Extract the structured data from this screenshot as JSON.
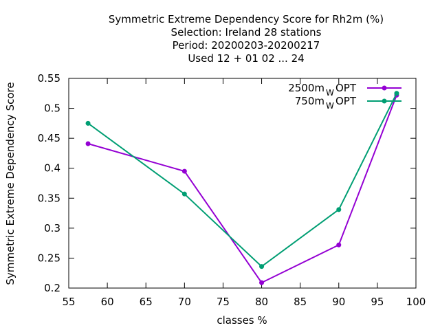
{
  "chart_data": {
    "type": "line",
    "title_lines": [
      "Symmetric Extreme Dependency Score  for Rh2m (%)",
      "Selection: Ireland      28 stations",
      "Period: 20200203-20200217",
      "Used  12 + 01 02 ... 24"
    ],
    "xlabel": "classes %",
    "ylabel": "Symmetric Extreme Dependency Score",
    "xlim": [
      55,
      100
    ],
    "ylim": [
      0.2,
      0.55
    ],
    "xticks": [
      "55",
      "60",
      "65",
      "70",
      "75",
      "80",
      "85",
      "90",
      "95",
      "100"
    ],
    "yticks": [
      "0.2",
      "0.25",
      "0.3",
      "0.35",
      "0.4",
      "0.45",
      "0.5",
      "0.55"
    ],
    "grid": false,
    "legend_position": "top-right",
    "series": [
      {
        "name_main": "2500m",
        "name_sub": "W",
        "name_tail": "OPT",
        "color": "#9400d3",
        "x": [
          57.5,
          70,
          80,
          90,
          97.5
        ],
        "y": [
          0.441,
          0.395,
          0.209,
          0.272,
          0.522
        ]
      },
      {
        "name_main": "750m",
        "name_sub": "W",
        "name_tail": "OPT",
        "color": "#009e73",
        "x": [
          57.5,
          70,
          80,
          90,
          97.5
        ],
        "y": [
          0.475,
          0.357,
          0.236,
          0.331,
          0.525
        ]
      }
    ]
  }
}
